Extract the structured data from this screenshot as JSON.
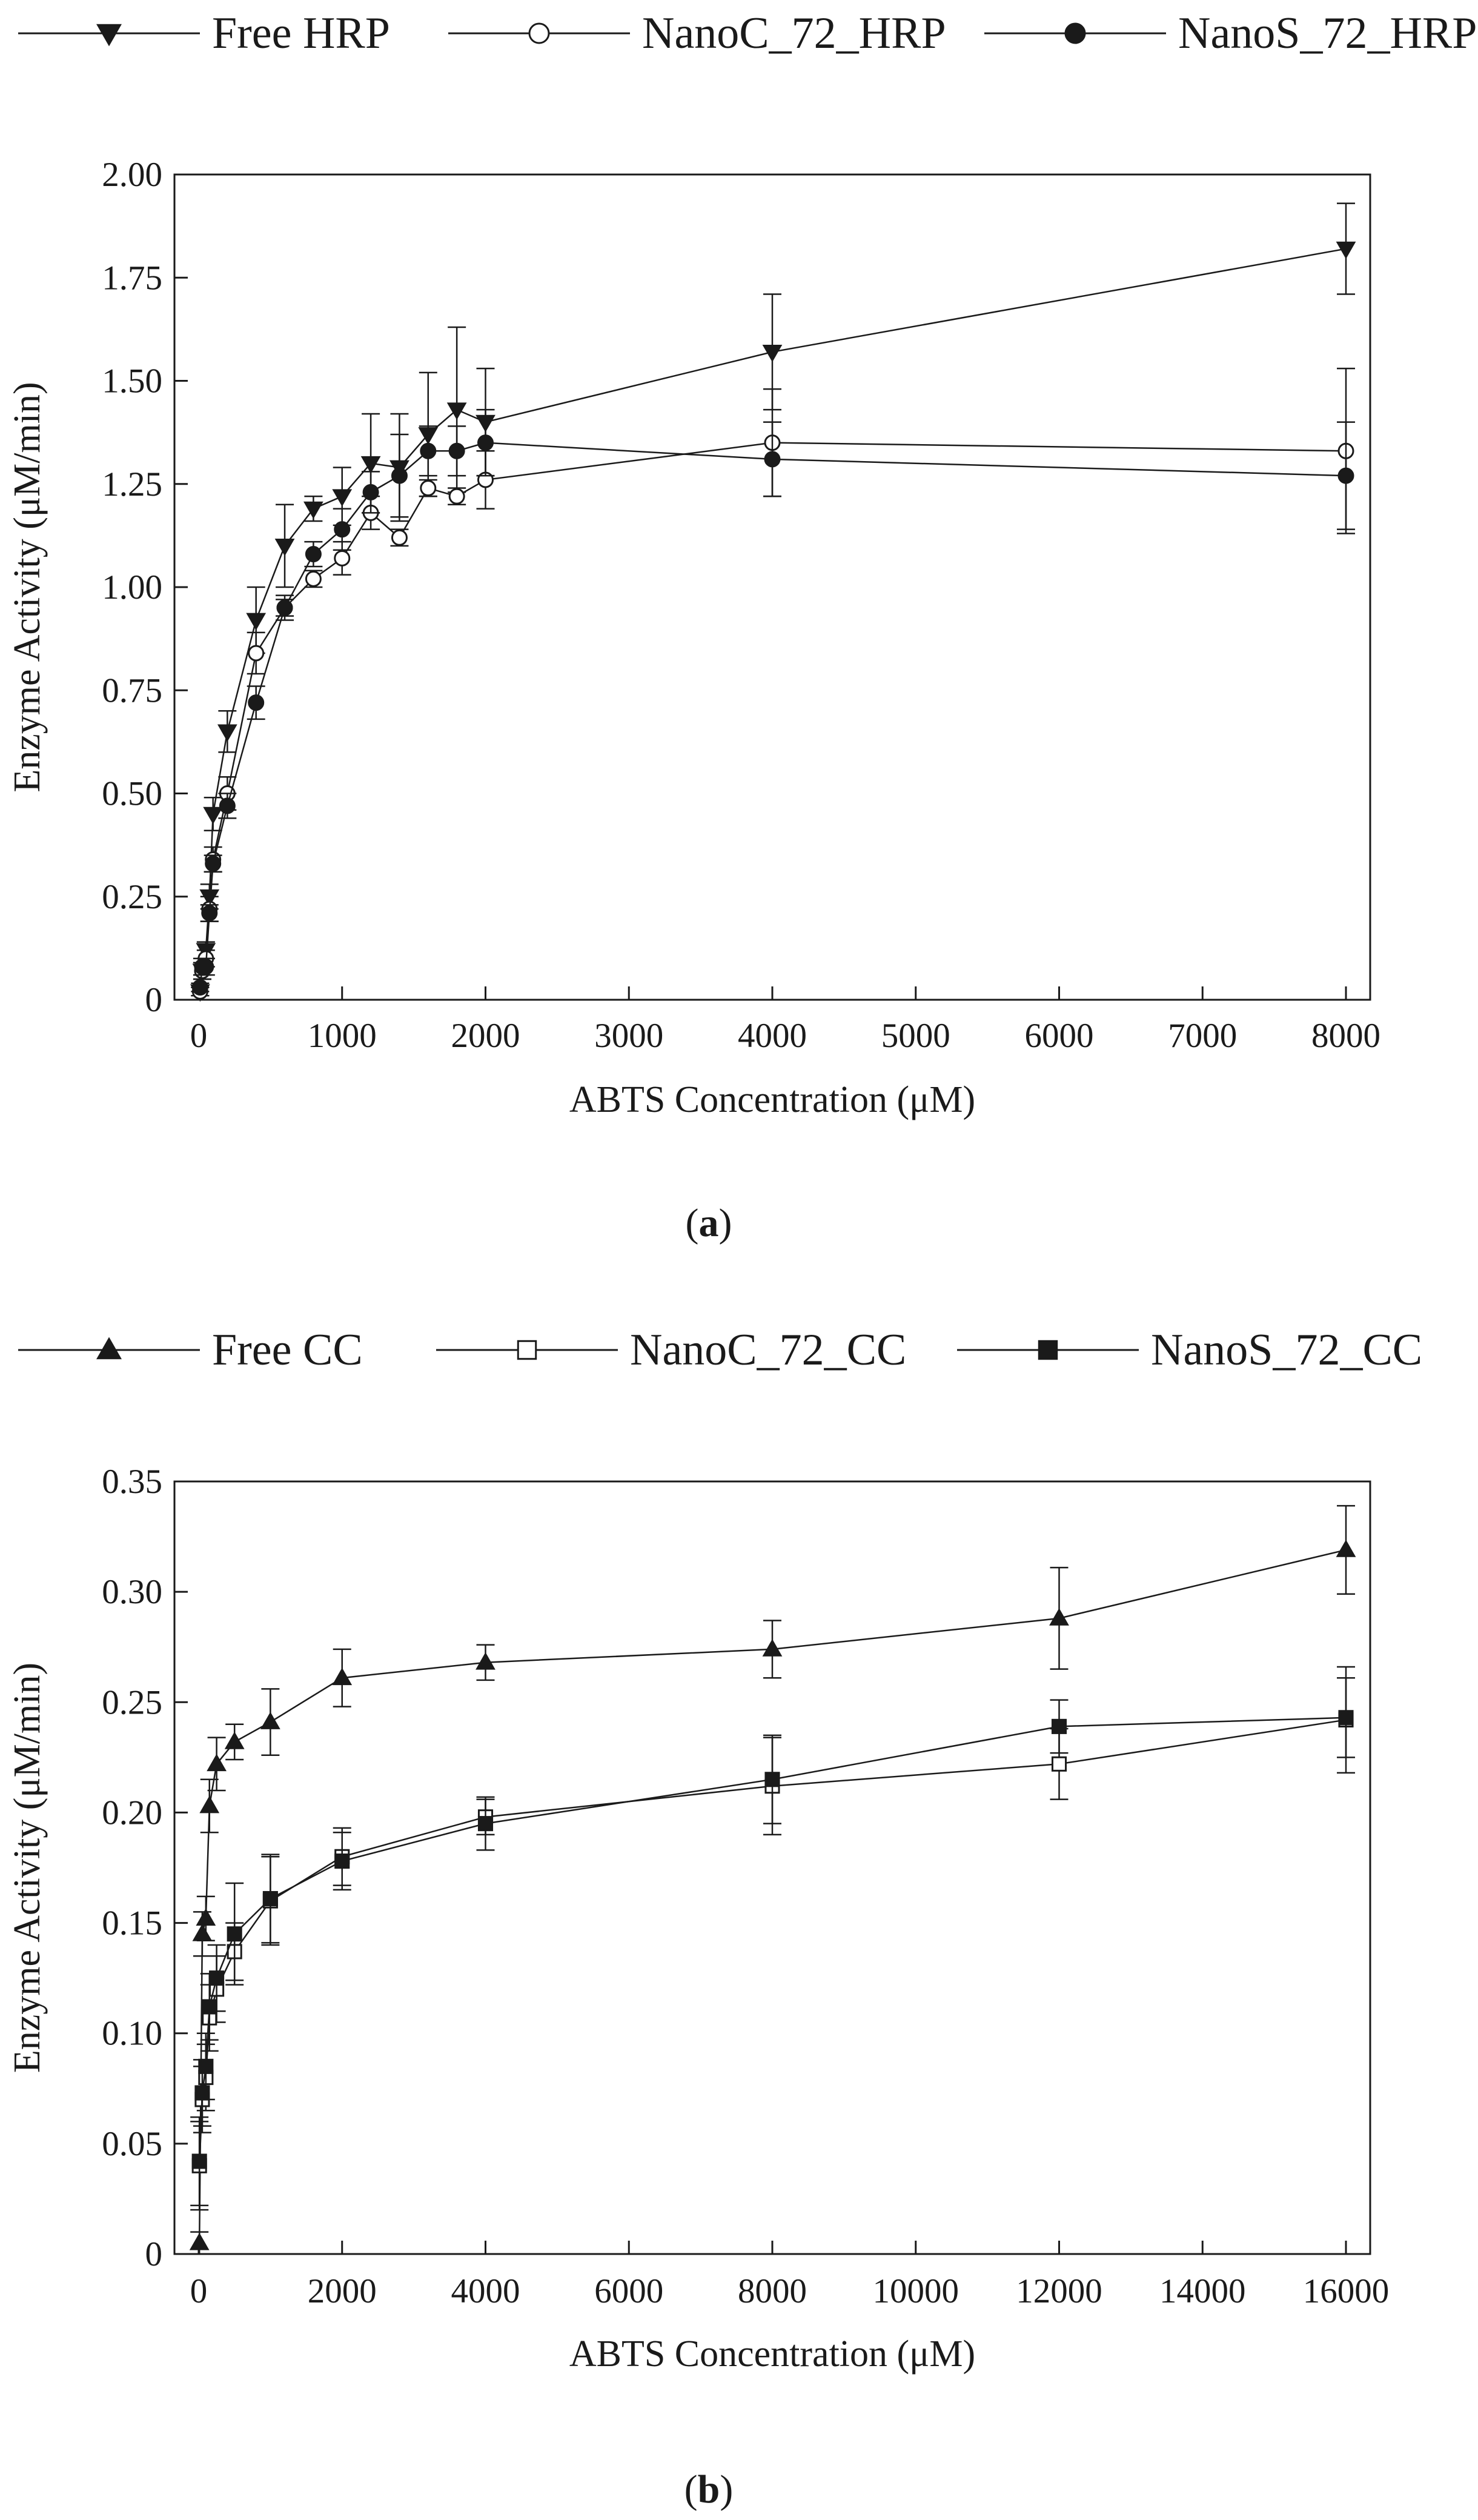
{
  "chart_data": [
    {
      "panel": "a",
      "type": "line",
      "title": "",
      "xlabel": "ABTS Concentration (μM)",
      "ylabel": "Enzyme Activity (μM/min)",
      "xlim": [
        0,
        8000
      ],
      "ylim": [
        0,
        2.0
      ],
      "x_ticks": [
        0,
        1000,
        2000,
        3000,
        4000,
        5000,
        6000,
        7000,
        8000
      ],
      "y_ticks": [
        0,
        0.25,
        0.5,
        0.75,
        1.0,
        1.25,
        1.5,
        1.75,
        2.0
      ],
      "y_tick_labels": [
        "0",
        "0.25",
        "0.50",
        "0.75",
        "1.00",
        "1.25",
        "1.50",
        "1.75",
        "2.00"
      ],
      "grid": false,
      "legend_position": "top",
      "series": [
        {
          "name": "Free HRP",
          "marker": "triangle-down",
          "fill": "filled",
          "points": [
            {
              "x": 10,
              "y": 0.02,
              "err": 0.01
            },
            {
              "x": 25,
              "y": 0.07,
              "err": 0.02
            },
            {
              "x": 50,
              "y": 0.12,
              "err": 0.02
            },
            {
              "x": 75,
              "y": 0.25,
              "err": 0.03
            },
            {
              "x": 100,
              "y": 0.45,
              "err": 0.04
            },
            {
              "x": 200,
              "y": 0.65,
              "err": 0.05
            },
            {
              "x": 400,
              "y": 0.92,
              "err": 0.08
            },
            {
              "x": 600,
              "y": 1.1,
              "err": 0.1
            },
            {
              "x": 800,
              "y": 1.19,
              "err": 0.03
            },
            {
              "x": 1000,
              "y": 1.22,
              "err": 0.07
            },
            {
              "x": 1200,
              "y": 1.3,
              "err": 0.12
            },
            {
              "x": 1400,
              "y": 1.29,
              "err": 0.13
            },
            {
              "x": 1600,
              "y": 1.37,
              "err": 0.15
            },
            {
              "x": 1800,
              "y": 1.43,
              "err": 0.2
            },
            {
              "x": 2000,
              "y": 1.4,
              "err": 0.13
            },
            {
              "x": 4000,
              "y": 1.57,
              "err": 0.14
            },
            {
              "x": 8000,
              "y": 1.82,
              "err": 0.11
            }
          ]
        },
        {
          "name": "NanoC_72_HRP",
          "marker": "circle",
          "fill": "open",
          "points": [
            {
              "x": 10,
              "y": 0.02,
              "err": 0.01
            },
            {
              "x": 25,
              "y": 0.07,
              "err": 0.02
            },
            {
              "x": 50,
              "y": 0.1,
              "err": 0.02
            },
            {
              "x": 75,
              "y": 0.22,
              "err": 0.03
            },
            {
              "x": 100,
              "y": 0.34,
              "err": 0.03
            },
            {
              "x": 200,
              "y": 0.5,
              "err": 0.04
            },
            {
              "x": 400,
              "y": 0.84,
              "err": 0.05
            },
            {
              "x": 600,
              "y": 0.95,
              "err": 0.03
            },
            {
              "x": 800,
              "y": 1.02,
              "err": 0.02
            },
            {
              "x": 1000,
              "y": 1.07,
              "err": 0.04
            },
            {
              "x": 1200,
              "y": 1.18,
              "err": 0.04
            },
            {
              "x": 1400,
              "y": 1.12,
              "err": 0.02
            },
            {
              "x": 1600,
              "y": 1.24,
              "err": 0.02
            },
            {
              "x": 1800,
              "y": 1.22,
              "err": 0.02
            },
            {
              "x": 2000,
              "y": 1.26,
              "err": 0.07
            },
            {
              "x": 4000,
              "y": 1.35,
              "err": 0.13
            },
            {
              "x": 8000,
              "y": 1.33,
              "err": 0.2
            }
          ]
        },
        {
          "name": "NanoS_72_HRP",
          "marker": "circle",
          "fill": "filled",
          "points": [
            {
              "x": 10,
              "y": 0.03,
              "err": 0.01
            },
            {
              "x": 25,
              "y": 0.08,
              "err": 0.02
            },
            {
              "x": 50,
              "y": 0.08,
              "err": 0.02
            },
            {
              "x": 75,
              "y": 0.21,
              "err": 0.02
            },
            {
              "x": 100,
              "y": 0.33,
              "err": 0.02
            },
            {
              "x": 200,
              "y": 0.47,
              "err": 0.03
            },
            {
              "x": 400,
              "y": 0.72,
              "err": 0.04
            },
            {
              "x": 600,
              "y": 0.95,
              "err": 0.02
            },
            {
              "x": 800,
              "y": 1.08,
              "err": 0.03
            },
            {
              "x": 1000,
              "y": 1.14,
              "err": 0.05
            },
            {
              "x": 1200,
              "y": 1.23,
              "err": 0.05
            },
            {
              "x": 1400,
              "y": 1.27,
              "err": 0.1
            },
            {
              "x": 1600,
              "y": 1.33,
              "err": 0.06
            },
            {
              "x": 1800,
              "y": 1.33,
              "err": 0.06
            },
            {
              "x": 2000,
              "y": 1.35,
              "err": 0.08
            },
            {
              "x": 4000,
              "y": 1.31,
              "err": 0.09
            },
            {
              "x": 8000,
              "y": 1.27,
              "err": 0.13
            }
          ]
        }
      ]
    },
    {
      "panel": "b",
      "type": "line",
      "title": "",
      "xlabel": "ABTS Concentration (μM)",
      "ylabel": "Enzyme Activity (μM/min)",
      "xlim": [
        0,
        16000
      ],
      "ylim": [
        0,
        0.35
      ],
      "x_ticks": [
        0,
        2000,
        4000,
        6000,
        8000,
        10000,
        12000,
        14000,
        16000
      ],
      "y_ticks": [
        0,
        0.05,
        0.1,
        0.15,
        0.2,
        0.25,
        0.3,
        0.35
      ],
      "y_tick_labels": [
        "0",
        "0.05",
        "0.10",
        "0.15",
        "0.20",
        "0.25",
        "0.30",
        "0.35"
      ],
      "grid": false,
      "legend_position": "top",
      "series": [
        {
          "name": "Free CC",
          "marker": "triangle-up",
          "fill": "filled",
          "points": [
            {
              "x": 10,
              "y": 0.005,
              "err": 0.005
            },
            {
              "x": 50,
              "y": 0.145,
              "err": 0.01
            },
            {
              "x": 100,
              "y": 0.152,
              "err": 0.01
            },
            {
              "x": 150,
              "y": 0.203,
              "err": 0.012
            },
            {
              "x": 250,
              "y": 0.222,
              "err": 0.012
            },
            {
              "x": 500,
              "y": 0.232,
              "err": 0.008
            },
            {
              "x": 1000,
              "y": 0.241,
              "err": 0.015
            },
            {
              "x": 2000,
              "y": 0.261,
              "err": 0.013
            },
            {
              "x": 4000,
              "y": 0.268,
              "err": 0.008
            },
            {
              "x": 8000,
              "y": 0.274,
              "err": 0.013
            },
            {
              "x": 12000,
              "y": 0.288,
              "err": 0.023
            },
            {
              "x": 16000,
              "y": 0.319,
              "err": 0.02
            }
          ]
        },
        {
          "name": "NanoC_72_CC",
          "marker": "square",
          "fill": "open",
          "points": [
            {
              "x": 10,
              "y": 0.04,
              "err": 0.02
            },
            {
              "x": 50,
              "y": 0.07,
              "err": 0.015
            },
            {
              "x": 100,
              "y": 0.08,
              "err": 0.015
            },
            {
              "x": 150,
              "y": 0.107,
              "err": 0.015
            },
            {
              "x": 250,
              "y": 0.12,
              "err": 0.015
            },
            {
              "x": 500,
              "y": 0.137,
              "err": 0.013
            },
            {
              "x": 1000,
              "y": 0.16,
              "err": 0.02
            },
            {
              "x": 2000,
              "y": 0.18,
              "err": 0.013
            },
            {
              "x": 4000,
              "y": 0.198,
              "err": 0.008
            },
            {
              "x": 8000,
              "y": 0.212,
              "err": 0.022
            },
            {
              "x": 12000,
              "y": 0.222,
              "err": 0.016
            },
            {
              "x": 16000,
              "y": 0.242,
              "err": 0.024
            }
          ]
        },
        {
          "name": "NanoS_72_CC",
          "marker": "square",
          "fill": "filled",
          "points": [
            {
              "x": 10,
              "y": 0.042,
              "err": 0.02
            },
            {
              "x": 50,
              "y": 0.073,
              "err": 0.015
            },
            {
              "x": 100,
              "y": 0.085,
              "err": 0.015
            },
            {
              "x": 150,
              "y": 0.112,
              "err": 0.015
            },
            {
              "x": 250,
              "y": 0.125,
              "err": 0.015
            },
            {
              "x": 500,
              "y": 0.145,
              "err": 0.023
            },
            {
              "x": 1000,
              "y": 0.161,
              "err": 0.02
            },
            {
              "x": 2000,
              "y": 0.178,
              "err": 0.013
            },
            {
              "x": 4000,
              "y": 0.195,
              "err": 0.012
            },
            {
              "x": 8000,
              "y": 0.215,
              "err": 0.02
            },
            {
              "x": 12000,
              "y": 0.239,
              "err": 0.012
            },
            {
              "x": 16000,
              "y": 0.243,
              "err": 0.018
            }
          ]
        }
      ]
    }
  ],
  "panel_labels": [
    {
      "open": "(",
      "letter": "a",
      "close": ")"
    },
    {
      "open": "(",
      "letter": "b",
      "close": ")"
    }
  ],
  "colors": {
    "ink": "#1a1a1a",
    "background": "#ffffff"
  }
}
